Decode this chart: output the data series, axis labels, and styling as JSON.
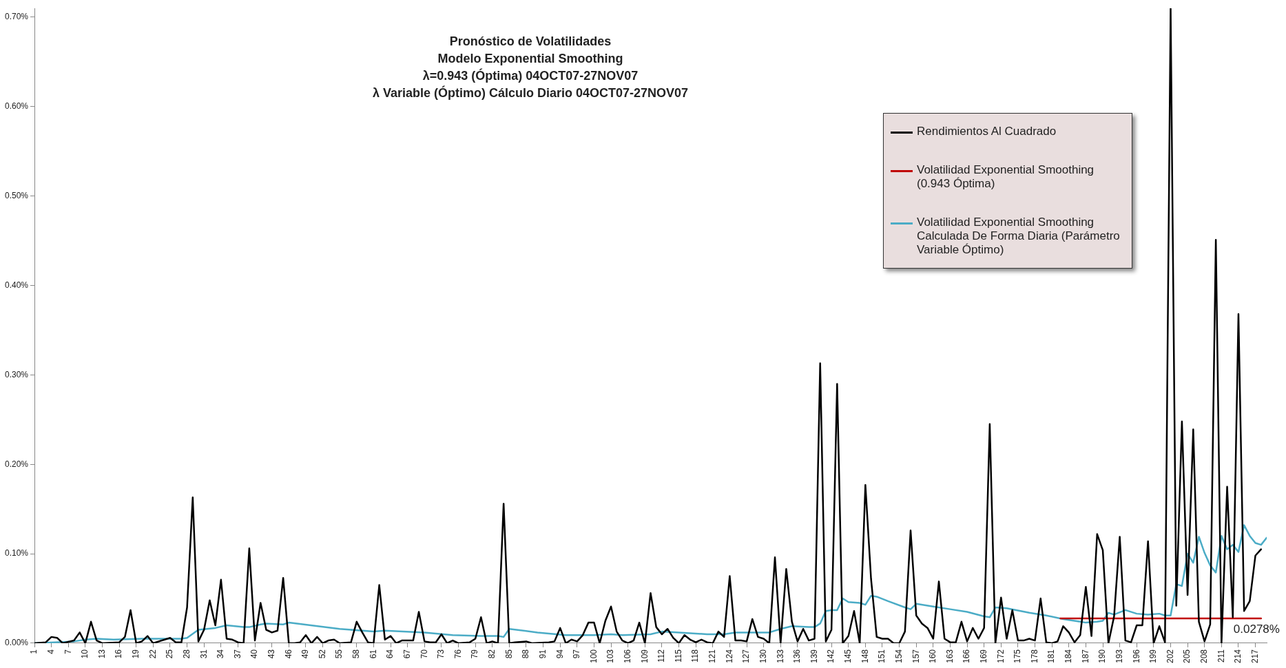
{
  "chart_data": {
    "type": "line",
    "title": "Pronóstico de Volatilidades",
    "subtitle": "Modelo Exponential Smoothing\nλ=0.943 (Óptima) 04OCT07-27NOV07\nλ Variable (Óptimo) Cálculo Diario 04OCT07-27NOV07",
    "xlim": [
      1,
      219
    ],
    "xticks": [
      1,
      4,
      7,
      10,
      13,
      16,
      19,
      22,
      25,
      28,
      31,
      34,
      37,
      40,
      43,
      46,
      49,
      52,
      55,
      58,
      61,
      64,
      67,
      70,
      73,
      76,
      79,
      82,
      85,
      88,
      91,
      94,
      97,
      100,
      103,
      106,
      109,
      112,
      115,
      118,
      121,
      124,
      127,
      130,
      133,
      136,
      139,
      142,
      145,
      148,
      151,
      154,
      157,
      160,
      163,
      166,
      169,
      172,
      175,
      178,
      181,
      184,
      187,
      190,
      193,
      196,
      199,
      202,
      205,
      208,
      211,
      214,
      217
    ],
    "ylim": [
      0,
      0.71
    ],
    "yticks": [
      {
        "value": 0,
        "label": "0.00%"
      },
      {
        "value": 0.1,
        "label": "0.10%"
      },
      {
        "value": 0.2,
        "label": "0.20%"
      },
      {
        "value": 0.3,
        "label": "0.30%"
      },
      {
        "value": 0.4,
        "label": "0.40%"
      },
      {
        "value": 0.5,
        "label": "0.50%"
      },
      {
        "value": 0.6,
        "label": "0.60%"
      },
      {
        "value": 0.7,
        "label": "0.70%"
      }
    ],
    "grid": false,
    "legend": "top right",
    "marker": "none",
    "line_style": "solid",
    "annotations": [
      {
        "text": "0.0278%",
        "x": 218,
        "y": 0.0278
      }
    ],
    "series": [
      {
        "name": "Rendimientos Al Cuadrado",
        "color": "#000000",
        "x": [
          1,
          3,
          4,
          5,
          6,
          8,
          9,
          10,
          11,
          12,
          13,
          16,
          17,
          18,
          19,
          20,
          21,
          22,
          25,
          26,
          27,
          28,
          29,
          30,
          31,
          32,
          33,
          34,
          35,
          36,
          37,
          38,
          39,
          40,
          41,
          42,
          43,
          44,
          45,
          46,
          47,
          48,
          49,
          50,
          51,
          52,
          53,
          54,
          55,
          57,
          58,
          59,
          60,
          61,
          62,
          63,
          64,
          65,
          66,
          68,
          69,
          70,
          71,
          72,
          73,
          74,
          75,
          76,
          78,
          79,
          80,
          81,
          82,
          83,
          84,
          85,
          86,
          88,
          89,
          92,
          93,
          94,
          95,
          96,
          97,
          98,
          99,
          100,
          101,
          102,
          103,
          104,
          105,
          106,
          107,
          108,
          109,
          110,
          111,
          112,
          113,
          114,
          115,
          116,
          117,
          118,
          119,
          120,
          121,
          122,
          123,
          124,
          125,
          126,
          127,
          128,
          129,
          130,
          131,
          132,
          133,
          134,
          135,
          136,
          137,
          138,
          139,
          140,
          141,
          142,
          143,
          144,
          145,
          146,
          147,
          148,
          149,
          150,
          151,
          152,
          153,
          154,
          155,
          156,
          157,
          158,
          159,
          160,
          161,
          162,
          163,
          164,
          165,
          166,
          167,
          168,
          169,
          170,
          171,
          172,
          173,
          174,
          175,
          176,
          177,
          178,
          179,
          180,
          181,
          182,
          183,
          184,
          185,
          186,
          187,
          188,
          189,
          190,
          191,
          192,
          193,
          194,
          195,
          196,
          197,
          198,
          199,
          200,
          201,
          202,
          203,
          204,
          205,
          206,
          207,
          208,
          209,
          210,
          211,
          212,
          213,
          214,
          215,
          216,
          217,
          218
        ],
        "values": [
          0,
          0.001,
          0.007,
          0.006,
          0,
          0.003,
          0.012,
          0,
          0.024,
          0.003,
          0,
          0.001,
          0.007,
          0.037,
          0,
          0.002,
          0.008,
          0,
          0.006,
          0.001,
          0.001,
          0.04,
          0.163,
          0.002,
          0.015,
          0.048,
          0.02,
          0.071,
          0.005,
          0.004,
          0.001,
          0,
          0.106,
          0.003,
          0.045,
          0.015,
          0.012,
          0.014,
          0.073,
          0,
          0,
          0.001,
          0.009,
          0,
          0.007,
          0,
          0.003,
          0.004,
          0,
          0.001,
          0.024,
          0.012,
          0.001,
          0,
          0.065,
          0.004,
          0.008,
          0,
          0.003,
          0.003,
          0.035,
          0.002,
          0.001,
          0.001,
          0.01,
          0,
          0.003,
          0,
          0.001,
          0.005,
          0.029,
          0,
          0.002,
          0,
          0.156,
          0,
          0.001,
          0.002,
          0,
          0.001,
          0.002,
          0.017,
          0,
          0.004,
          0.002,
          0.009,
          0.023,
          0.023,
          0,
          0.025,
          0.041,
          0.013,
          0.003,
          0,
          0.003,
          0.023,
          0,
          0.056,
          0.018,
          0.01,
          0.016,
          0.006,
          0,
          0.009,
          0.004,
          0.001,
          0.004,
          0.001,
          0,
          0.013,
          0.007,
          0.075,
          0.003,
          0.003,
          0.002,
          0.027,
          0.007,
          0.005,
          0,
          0.096,
          0,
          0.083,
          0.024,
          0.002,
          0.016,
          0.003,
          0.005,
          0.313,
          0.002,
          0.015,
          0.29,
          0,
          0.008,
          0.036,
          0,
          0.177,
          0.072,
          0.007,
          0.005,
          0.005,
          0,
          0,
          0.013,
          0.126,
          0.031,
          0.022,
          0.017,
          0.005,
          0.069,
          0.005,
          0.001,
          0.001,
          0.024,
          0.002,
          0.017,
          0.005,
          0.017,
          0.245,
          0,
          0.051,
          0.005,
          0.037,
          0.003,
          0.003,
          0.005,
          0.003,
          0.05,
          0.001,
          0,
          0.002,
          0.019,
          0.012,
          0.001,
          0.009,
          0.063,
          0.008,
          0.122,
          0.104,
          0,
          0.03,
          0.119,
          0.003,
          0.001,
          0.02,
          0.02,
          0.114,
          0,
          0.019,
          0.001,
          0.71,
          0.042,
          0.248,
          0.054,
          0.239,
          0.024,
          0.002,
          0.021,
          0.451,
          0,
          0.175,
          0.029,
          0.368,
          0.036,
          0.047,
          0.098,
          0.105
        ]
      },
      {
        "name": "Volatilidad Exponential Smoothing (0.943 Óptima)",
        "color": "#c00000",
        "x": [
          182.5,
          218
        ],
        "values": [
          0.0278,
          0.0278
        ]
      },
      {
        "name": "Volatilidad Exponential Smoothing Calculada De Forma Diaria (Parámetro Variable Óptimo)",
        "color": "#4bacc6",
        "x": [
          1,
          8,
          10,
          12,
          15,
          20,
          27,
          28,
          30,
          33,
          35,
          38,
          39,
          41,
          42,
          45,
          46,
          55,
          61,
          63,
          70,
          75,
          80,
          83,
          84,
          85,
          90,
          95,
          100,
          103,
          105,
          110,
          112,
          115,
          120,
          123,
          125,
          130,
          131,
          133,
          135,
          138,
          139,
          140,
          141,
          142,
          143,
          144,
          145,
          147,
          148,
          149,
          150,
          152,
          155,
          156,
          157,
          160,
          163,
          166,
          169,
          170,
          171,
          173,
          177,
          180,
          183,
          186,
          187,
          189,
          190,
          191,
          192,
          194,
          196,
          198,
          200,
          201,
          202,
          203,
          204,
          205,
          206,
          207,
          208,
          209,
          210,
          211,
          212,
          213,
          214,
          215,
          216,
          217,
          218,
          219
        ],
        "values": [
          0,
          0.002,
          0.004,
          0.005,
          0.004,
          0.005,
          0.005,
          0.006,
          0.015,
          0.017,
          0.02,
          0.018,
          0.018,
          0.021,
          0.022,
          0.021,
          0.023,
          0.016,
          0.013,
          0.014,
          0.012,
          0.009,
          0.008,
          0.008,
          0.007,
          0.016,
          0.012,
          0.009,
          0.009,
          0.01,
          0.009,
          0.01,
          0.013,
          0.012,
          0.01,
          0.01,
          0.012,
          0.012,
          0.012,
          0.016,
          0.019,
          0.018,
          0.018,
          0.022,
          0.036,
          0.037,
          0.037,
          0.05,
          0.046,
          0.045,
          0.043,
          0.053,
          0.052,
          0.047,
          0.04,
          0.038,
          0.044,
          0.041,
          0.038,
          0.035,
          0.03,
          0.029,
          0.04,
          0.039,
          0.034,
          0.031,
          0.027,
          0.024,
          0.023,
          0.024,
          0.025,
          0.034,
          0.032,
          0.037,
          0.033,
          0.032,
          0.033,
          0.031,
          0.031,
          0.066,
          0.064,
          0.1,
          0.09,
          0.119,
          0.101,
          0.087,
          0.079,
          0.12,
          0.105,
          0.11,
          0.102,
          0.132,
          0.12,
          0.112,
          0.11,
          0.118
        ]
      }
    ]
  }
}
